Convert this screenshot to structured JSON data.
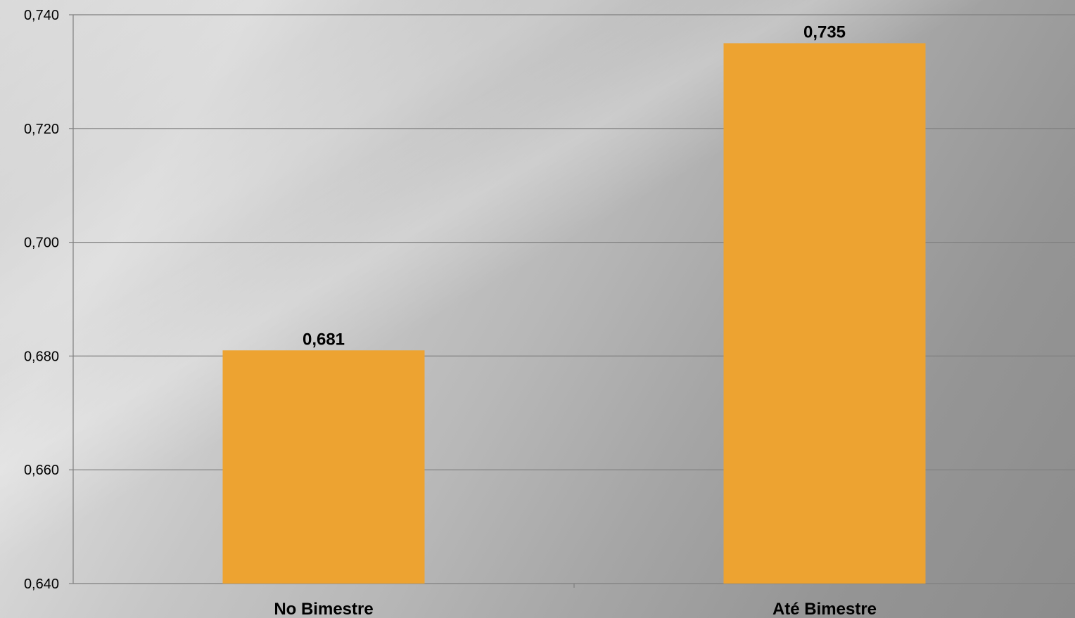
{
  "chart_data": {
    "type": "bar",
    "categories": [
      "No Bimestre",
      "Até Bimestre"
    ],
    "values": [
      0.681,
      0.735
    ],
    "data_labels": [
      "0,681",
      "0,735"
    ],
    "ylim": [
      0.64,
      0.74
    ],
    "yticks": [
      0.64,
      0.66,
      0.68,
      0.7,
      0.72,
      0.74
    ],
    "ytick_labels": [
      "0,640",
      "0,660",
      "0,680",
      "0,700",
      "0,720",
      "0,740"
    ],
    "grid": true,
    "bar_color": "#EDA331",
    "gridline_color": "#7f7f7f",
    "title": "",
    "xlabel": "",
    "ylabel": ""
  }
}
